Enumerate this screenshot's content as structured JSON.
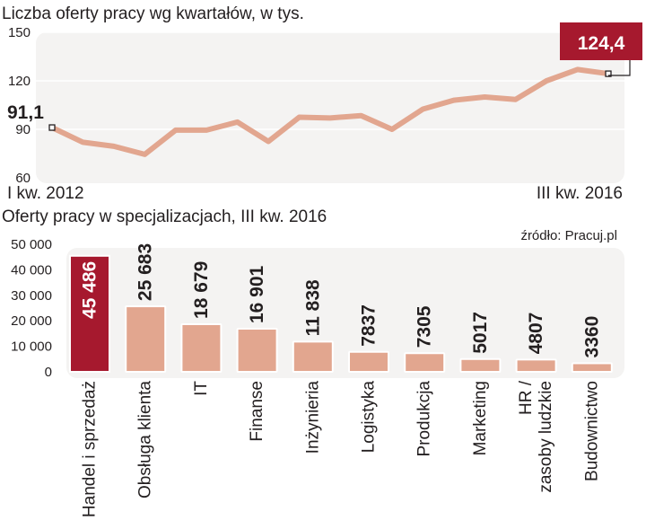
{
  "chart_data": [
    {
      "type": "line",
      "title": "Liczba oferty pracy wg kwartałów, w tys.",
      "ylim": [
        60,
        150
      ],
      "yticks": [
        "150",
        "120",
        "90",
        "60"
      ],
      "x_start_label": "I kw. 2012",
      "x_end_label": "III kw. 2016",
      "values": [
        91.1,
        82,
        79.5,
        74.5,
        89.5,
        89.5,
        94.5,
        82.5,
        97.5,
        97,
        98.5,
        90,
        102.5,
        108,
        110,
        108.5,
        120,
        127,
        124.4
      ],
      "first_label": "91,1",
      "last_label": "124,4",
      "colors": {
        "line": "#e2a68f",
        "panel": "#f4f3f2",
        "callout": "#a6192e",
        "text": "#231f20"
      }
    },
    {
      "type": "bar",
      "title": "Oferty pracy w specjalizacjach, III kw. 2016",
      "source": "źródło: Pracuj.pl",
      "ylim": [
        0,
        50000
      ],
      "yticks": [
        "50 000",
        "40 000",
        "30 000",
        "20 000",
        "10 000",
        "0"
      ],
      "categories": [
        [
          "Handel i sprzedaż"
        ],
        [
          "Obsługa klienta"
        ],
        [
          "IT"
        ],
        [
          "Finanse"
        ],
        [
          "Inżynieria"
        ],
        [
          "Logistyka"
        ],
        [
          "Produkcja"
        ],
        [
          "Marketing"
        ],
        [
          "HR /",
          "zasoby ludzkie"
        ],
        [
          "Budownictwo"
        ]
      ],
      "values": [
        45486,
        25683,
        18679,
        16901,
        11838,
        7837,
        7305,
        5017,
        4807,
        3360
      ],
      "value_labels": [
        "45 486",
        "25 683",
        "18 679",
        "16 901",
        "11 838",
        "7837",
        "7305",
        "5017",
        "4807",
        "3360"
      ],
      "highlight_index": 0,
      "colors": {
        "bar": "#e2a68f",
        "highlight": "#a6192e",
        "panel": "#f4f3f2"
      }
    }
  ]
}
